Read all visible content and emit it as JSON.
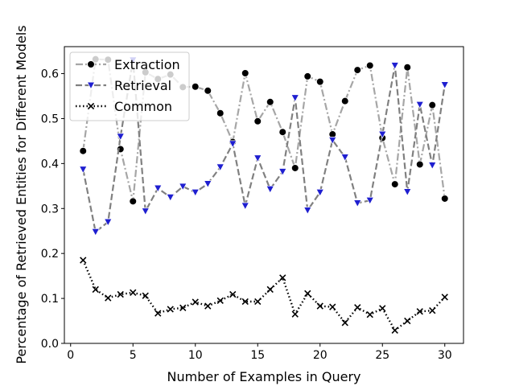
{
  "chart_data": {
    "type": "line",
    "xlabel": "Number of Examples in Query",
    "ylabel": "Percentage of Retrieved Entities for Different Models",
    "xlim": [
      -0.5,
      31.5
    ],
    "ylim": [
      0.0,
      0.66
    ],
    "xticks": [
      0,
      5,
      10,
      15,
      20,
      25,
      30
    ],
    "yticks": [
      0.0,
      0.1,
      0.2,
      0.3,
      0.4,
      0.5,
      0.6
    ],
    "ytick_labels": [
      "0.0",
      "0.1",
      "0.2",
      "0.3",
      "0.4",
      "0.5",
      "0.6"
    ],
    "grid": false,
    "legend_position": "upper left",
    "x": [
      1,
      2,
      3,
      4,
      5,
      6,
      7,
      8,
      9,
      10,
      11,
      12,
      13,
      14,
      15,
      16,
      17,
      18,
      19,
      20,
      21,
      22,
      23,
      24,
      25,
      26,
      27,
      28,
      29,
      30
    ],
    "series": [
      {
        "name": "Extraction",
        "line_color": "#a6a6a6",
        "marker_color": "#000000",
        "line_style": "dash-dot",
        "marker": "circle",
        "values": [
          0.428,
          0.632,
          0.631,
          0.432,
          0.316,
          0.603,
          0.588,
          0.598,
          0.57,
          0.571,
          0.562,
          0.512,
          0.448,
          0.601,
          0.494,
          0.537,
          0.47,
          0.39,
          0.594,
          0.582,
          0.465,
          0.539,
          0.608,
          0.618,
          0.457,
          0.354,
          0.614,
          0.398,
          0.53,
          0.322
        ]
      },
      {
        "name": "Retrieval",
        "line_color": "#808080",
        "marker_color": "#1f1fd0",
        "line_style": "dashed",
        "marker": "triangle-down",
        "values": [
          0.387,
          0.248,
          0.27,
          0.46,
          0.63,
          0.294,
          0.345,
          0.325,
          0.349,
          0.336,
          0.355,
          0.392,
          0.444,
          0.306,
          0.412,
          0.343,
          0.382,
          0.546,
          0.296,
          0.336,
          0.452,
          0.414,
          0.312,
          0.318,
          0.465,
          0.618,
          0.337,
          0.531,
          0.396,
          0.575
        ]
      },
      {
        "name": "Common",
        "line_color": "#000000",
        "marker_color": "#000000",
        "line_style": "dotted",
        "marker": "x",
        "values": [
          0.185,
          0.12,
          0.101,
          0.109,
          0.113,
          0.106,
          0.067,
          0.076,
          0.079,
          0.092,
          0.083,
          0.095,
          0.109,
          0.093,
          0.093,
          0.12,
          0.146,
          0.065,
          0.111,
          0.083,
          0.081,
          0.046,
          0.08,
          0.064,
          0.078,
          0.029,
          0.05,
          0.071,
          0.073,
          0.103
        ]
      }
    ]
  }
}
